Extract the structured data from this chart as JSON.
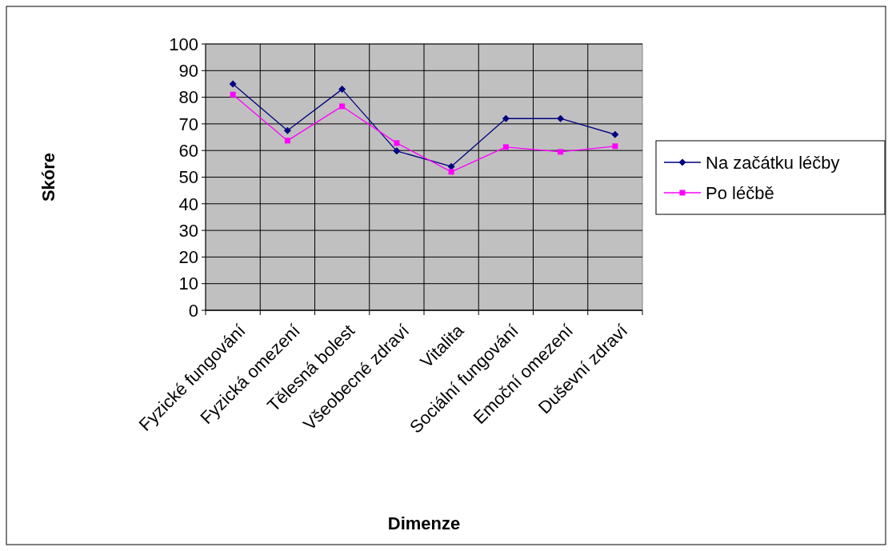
{
  "chart_data": {
    "type": "line",
    "xlabel": "Dimenze",
    "ylabel": "Skóre",
    "categories": [
      "Fyzické fungování",
      "Fyzická omezení",
      "Tělesná bolest",
      "Všeobecné zdraví",
      "Vitalita",
      "Sociální fungování",
      "Emoční omezení",
      "Duševní zdraví"
    ],
    "series": [
      {
        "name": "Na začátku léčby",
        "color": "#000080",
        "marker": "diamond",
        "values": [
          85,
          67.5,
          83,
          59.8,
          54,
          72,
          72,
          66
        ]
      },
      {
        "name": "Po léčbě",
        "color": "#ff00ff",
        "marker": "square",
        "values": [
          81,
          63.7,
          76.6,
          62.8,
          52,
          61.3,
          59.5,
          61.6
        ]
      }
    ],
    "ylim": [
      0,
      100
    ],
    "yticks": [
      0,
      10,
      20,
      30,
      40,
      50,
      60,
      70,
      80,
      90,
      100
    ],
    "grid": true,
    "legend": "right"
  }
}
